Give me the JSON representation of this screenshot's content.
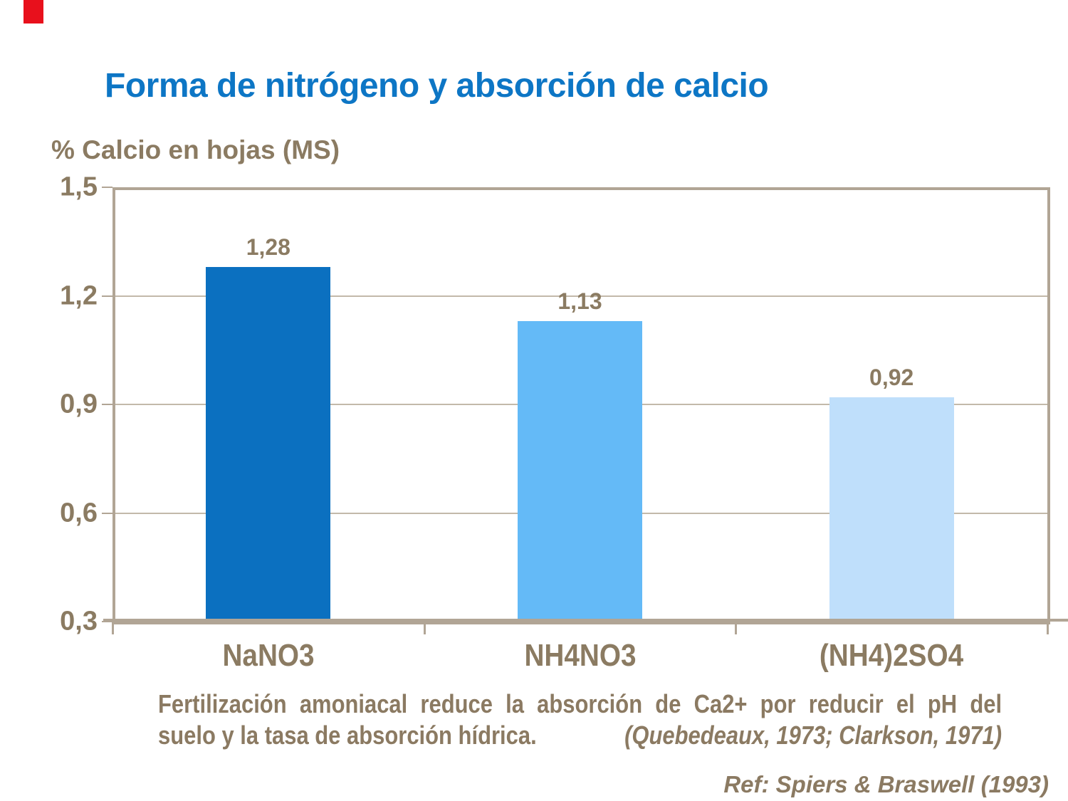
{
  "slide": {
    "title": "Forma de nitrógeno y absorción de calcio",
    "caption_line1": "Fertilización amoniacal reduce la absorción de Ca2+ por reducir el pH del",
    "caption_line2": "suelo y la tasa de absorción hídrica.",
    "caption_citation": "(Quebedeaux, 1973; Clarkson, 1971)",
    "reference": "Ref: Spiers & Braswell (1993)"
  },
  "colors": {
    "title_blue": "#0d76c5",
    "text_brown": "#8b7b62",
    "frame_taupe": "#b1a595",
    "grid_taupe": "#c3b9aa",
    "accent_red": "#e8101c",
    "bar_colors": [
      "#0b70c0",
      "#64baf7",
      "#bfdffb"
    ]
  },
  "chart_data": {
    "type": "bar",
    "title": "Forma de nitrógeno y absorción de calcio",
    "ylabel": "% Calcio en hojas (MS)",
    "xlabel": "",
    "categories": [
      "NaNO3",
      "NH4NO3",
      "(NH4)2SO4"
    ],
    "values": [
      1.28,
      1.13,
      0.92
    ],
    "value_labels": [
      "1,28",
      "1,13",
      "0,92"
    ],
    "ylim": [
      0.3,
      1.5
    ],
    "yticks": [
      {
        "value": 1.5,
        "label": "1,5"
      },
      {
        "value": 1.2,
        "label": "1,2"
      },
      {
        "value": 0.9,
        "label": "0,9"
      },
      {
        "value": 0.6,
        "label": "0,6"
      },
      {
        "value": 0.3,
        "label": "0,3"
      }
    ],
    "grid": "horizontal",
    "legend": "none",
    "bar_colors": [
      "#0b70c0",
      "#64baf7",
      "#bfdffb"
    ]
  }
}
